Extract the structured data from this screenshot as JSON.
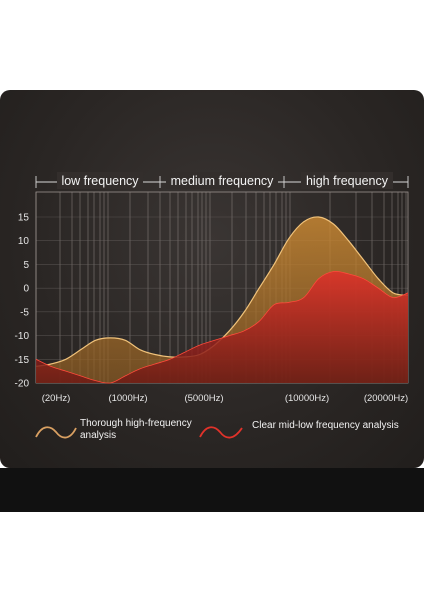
{
  "chart_data": {
    "type": "area",
    "bands": [
      {
        "label": "low frequency"
      },
      {
        "label": "medium frequency"
      },
      {
        "label": "high frequency"
      }
    ],
    "y_ticks": [
      "15",
      "10",
      "5",
      "0",
      "-5",
      "-10",
      "-15",
      "-20"
    ],
    "ylim": [
      -20,
      20
    ],
    "x_tick_labels": [
      "(20Hz)",
      "(1000Hz)",
      "(5000Hz)",
      "(10000Hz)",
      "(20000Hz)"
    ],
    "grid": true,
    "series": [
      {
        "name": "Thorough high-frequency analysis",
        "color": "#c9852e",
        "x": [
          0,
          4,
          8,
          12,
          16,
          20,
          24,
          28,
          32,
          36,
          40,
          44,
          48,
          52,
          56,
          60,
          64,
          68,
          72,
          76,
          80,
          84,
          88,
          92,
          96,
          100
        ],
        "values": [
          -16.5,
          -16,
          -15,
          -13,
          -11,
          -10.5,
          -11,
          -13,
          -14,
          -14.5,
          -14.5,
          -14,
          -12,
          -9,
          -5,
          0,
          5,
          10.5,
          14,
          15,
          13.5,
          10,
          6,
          2,
          -1,
          -1.5
        ]
      },
      {
        "name": "Clear mid-low frequency analysis",
        "color": "#d62a22",
        "x": [
          0,
          4,
          8,
          12,
          16,
          20,
          24,
          28,
          32,
          36,
          40,
          44,
          48,
          52,
          56,
          60,
          64,
          68,
          72,
          76,
          80,
          84,
          88,
          92,
          96,
          100
        ],
        "values": [
          -15,
          -16.5,
          -17.5,
          -18.5,
          -19.5,
          -20,
          -18.5,
          -17,
          -16,
          -15,
          -13.5,
          -12,
          -11,
          -10,
          -9,
          -7,
          -3.5,
          -3,
          -2,
          2,
          3.5,
          3,
          2,
          0,
          -2,
          -1
        ]
      }
    ],
    "legend": [
      {
        "label_line1": "Thorough high-frequency",
        "label_line2": "analysis",
        "color": "#c9852e"
      },
      {
        "label_line1": "Clear mid-low frequency analysis",
        "label_line2": "",
        "color": "#d62a22"
      }
    ]
  }
}
